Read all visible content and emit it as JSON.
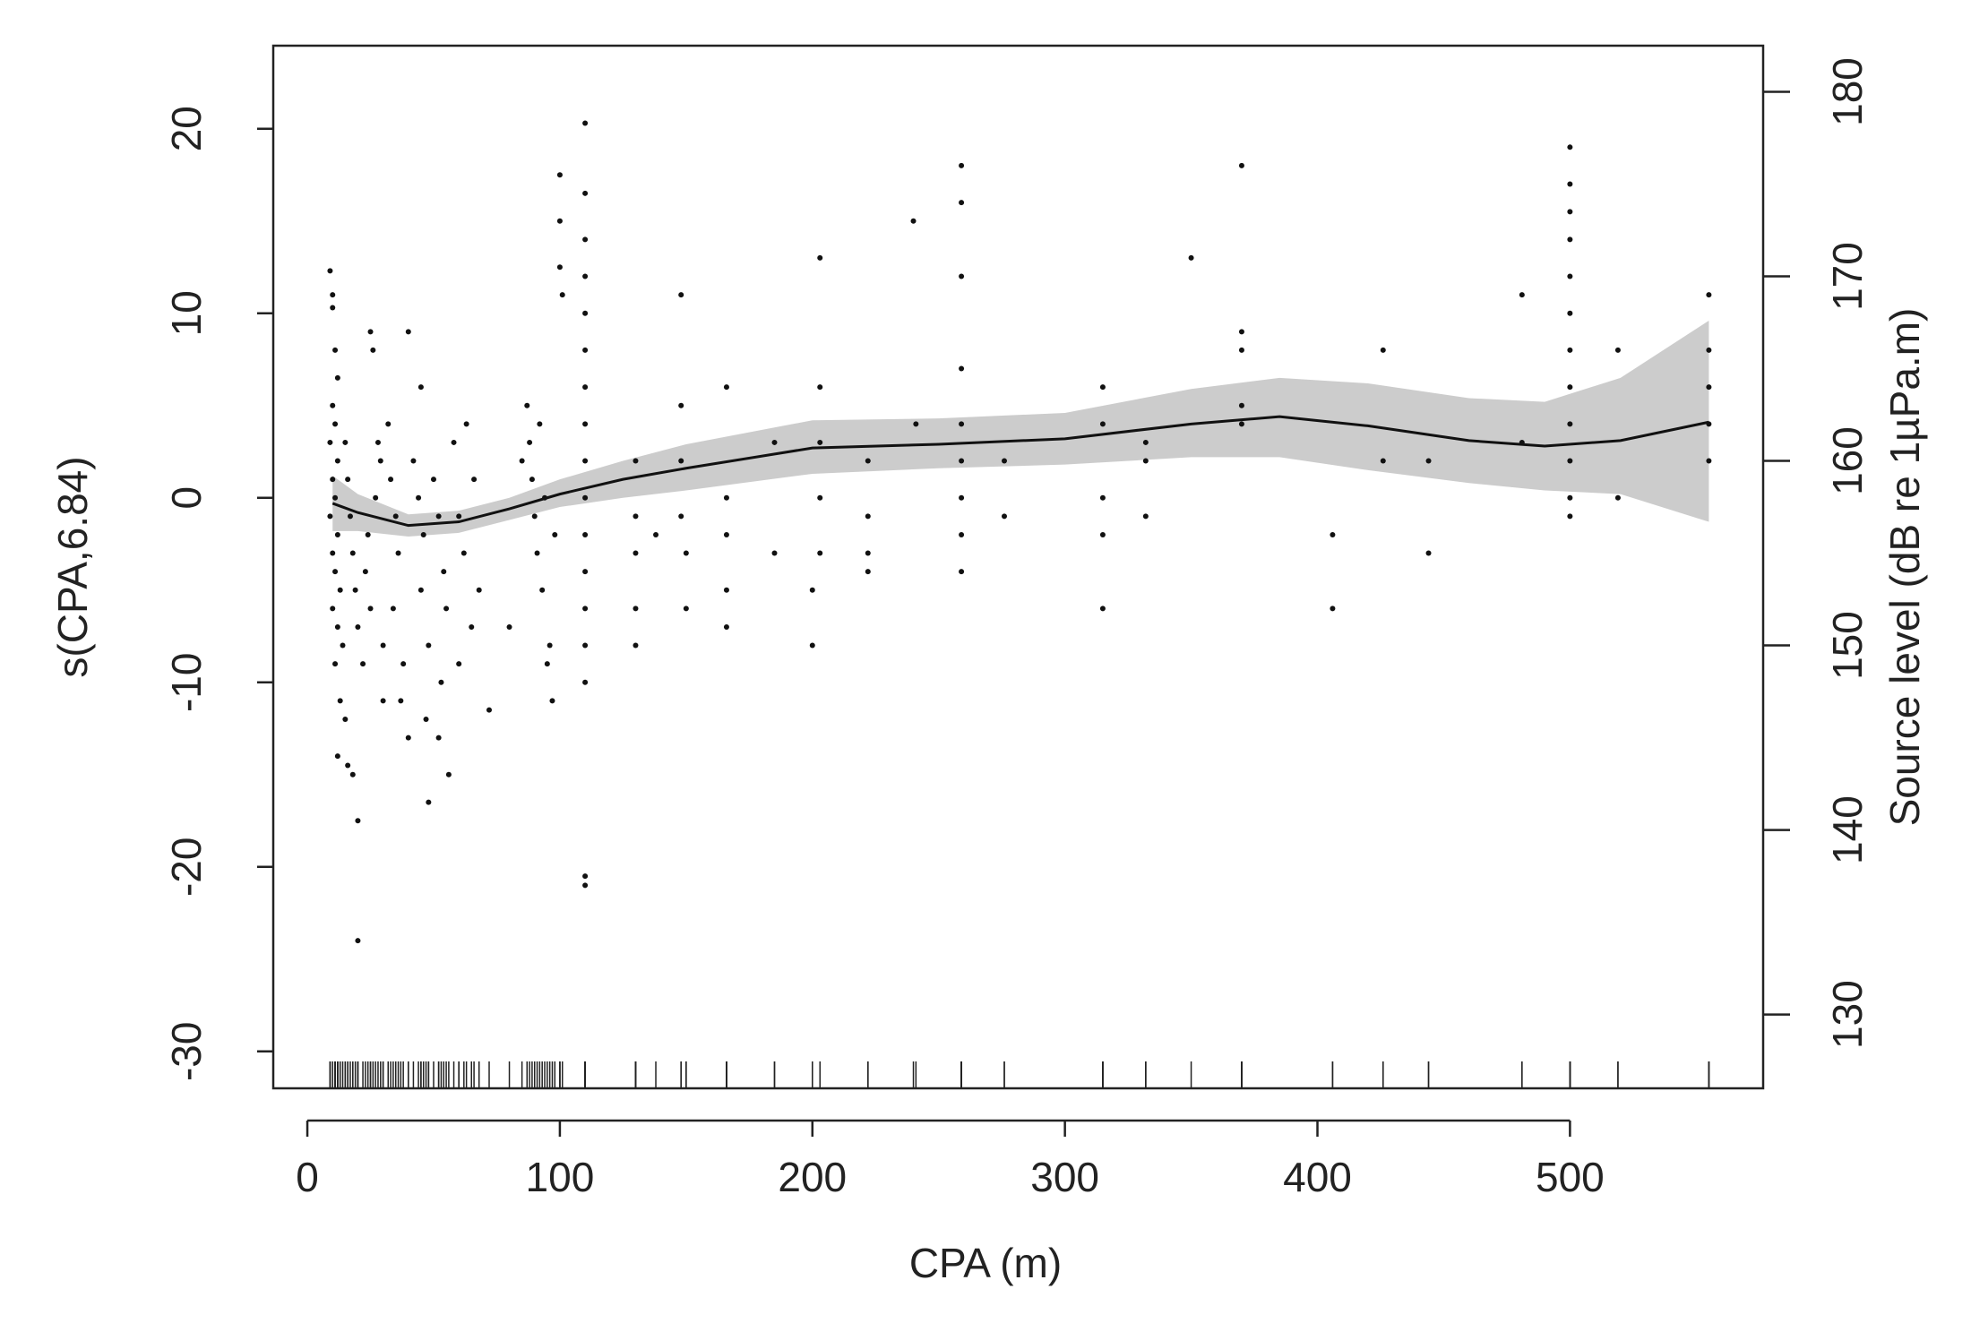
{
  "chart_data": {
    "type": "gam",
    "xlabel": "CPA (m)",
    "ylabel": "s(CPA,6.84)",
    "y2label": "Source level (dB re 1µPa.m)",
    "xlim": [
      -13.5,
      576.5
    ],
    "ylim": [
      -32,
      24.5
    ],
    "y2lim": [
      126,
      182.5
    ],
    "xticks": [
      0,
      100,
      200,
      300,
      400,
      500
    ],
    "yticks": [
      -30,
      -20,
      -10,
      0,
      10,
      20
    ],
    "y2ticks": [
      130,
      140,
      150,
      160,
      170,
      180
    ],
    "point_color": "#111111",
    "line_color": "#111111",
    "band_color": "#cccccc",
    "rug": true,
    "points": {
      "x": [
        9,
        10,
        10,
        11,
        12,
        10,
        11,
        9,
        12,
        10,
        11,
        9,
        12,
        10,
        11,
        13,
        10,
        12,
        14,
        11,
        13,
        15,
        12,
        16,
        18,
        20,
        20,
        15,
        16,
        17,
        18,
        19,
        20,
        22,
        25,
        26,
        28,
        27,
        24,
        23,
        25,
        30,
        30,
        29,
        32,
        33,
        35,
        36,
        34,
        38,
        37,
        40,
        40,
        42,
        44,
        45,
        46,
        45,
        48,
        47,
        48,
        50,
        52,
        54,
        55,
        53,
        52,
        56,
        58,
        60,
        62,
        63,
        60,
        66,
        68,
        65,
        72,
        80,
        85,
        87,
        88,
        90,
        91,
        93,
        89,
        92,
        95,
        97,
        96,
        94,
        98,
        100,
        100,
        101,
        100,
        110,
        110,
        110,
        110,
        110,
        110,
        110,
        110,
        110,
        110,
        110,
        110,
        110,
        110,
        110,
        110,
        110,
        130,
        130,
        130,
        130,
        130,
        138,
        148,
        148,
        148,
        148,
        150,
        150,
        166,
        166,
        166,
        166,
        166,
        185,
        185,
        200,
        200,
        203,
        203,
        203,
        203,
        203,
        222,
        222,
        222,
        222,
        240,
        241,
        259,
        259,
        259,
        259,
        259,
        259,
        259,
        259,
        259,
        276,
        276,
        315,
        315,
        315,
        315,
        315,
        332,
        332,
        332,
        350,
        370,
        370,
        370,
        370,
        370,
        406,
        406,
        426,
        426,
        444,
        444,
        481,
        481,
        500,
        500,
        500,
        500,
        500,
        500,
        500,
        500,
        500,
        500,
        500,
        500,
        519,
        519,
        555,
        555,
        555,
        555,
        555
      ],
      "y": [
        12.3,
        11,
        10.3,
        8,
        6.5,
        5,
        4,
        3,
        2,
        1,
        0,
        -1,
        -2,
        -3,
        -4,
        -5,
        -6,
        -7,
        -8,
        -9,
        -11,
        -12,
        -14,
        -14.5,
        -15,
        -17.5,
        -24,
        3,
        1,
        -1,
        -3,
        -5,
        -7,
        -9,
        9,
        8,
        3,
        0,
        -2,
        -4,
        -6,
        -8,
        -11,
        2,
        4,
        1,
        -1,
        -3,
        -6,
        -9,
        -11,
        9,
        -13,
        2,
        0,
        6,
        -2,
        -5,
        -8,
        -12,
        -16.5,
        1,
        -1,
        -4,
        -6,
        -10,
        -13,
        -15,
        3,
        -1,
        -3,
        4,
        -9,
        1,
        -5,
        -7,
        -11.5,
        -7,
        2,
        5,
        3,
        -1,
        -3,
        -5,
        1,
        4,
        -9,
        -11,
        -8,
        0,
        -2,
        15,
        17.5,
        11,
        12.5,
        20.3,
        16.5,
        14,
        12,
        10,
        8,
        6,
        4,
        2,
        0,
        -2,
        -4,
        -6,
        -8,
        -10,
        -20.5,
        -21,
        2,
        -1,
        -3,
        -6,
        -8,
        -2,
        11,
        5,
        2,
        -1,
        -3,
        -6,
        6,
        0,
        -2,
        -5,
        -7,
        3,
        -3,
        -5,
        -8,
        13,
        6,
        3,
        0,
        -3,
        2,
        -1,
        -3,
        -4,
        15,
        4,
        18,
        16,
        12,
        7,
        4,
        2,
        0,
        -2,
        -4,
        2,
        -1,
        6,
        4,
        0,
        -2,
        -6,
        3,
        2,
        -1,
        13,
        18,
        9,
        8,
        5,
        4,
        -2,
        -6,
        8,
        2,
        2,
        -3,
        11,
        3,
        19,
        17,
        15.5,
        14,
        12,
        10,
        8,
        6,
        4,
        2,
        0,
        -1,
        8,
        0,
        11,
        8,
        6,
        4,
        2
      ]
    },
    "smooth": {
      "x": [
        10,
        20,
        40,
        60,
        80,
        100,
        125,
        150,
        200,
        250,
        300,
        350,
        385,
        420,
        460,
        490,
        520,
        555
      ],
      "fit": [
        -0.3,
        -0.8,
        -1.5,
        -1.3,
        -0.6,
        0.2,
        1.0,
        1.6,
        2.7,
        2.9,
        3.2,
        4.0,
        4.4,
        3.9,
        3.1,
        2.8,
        3.1,
        4.1
      ],
      "lower": [
        -1.8,
        -1.8,
        -2.1,
        -1.9,
        -1.2,
        -0.5,
        0.0,
        0.4,
        1.3,
        1.6,
        1.8,
        2.2,
        2.2,
        1.5,
        0.8,
        0.4,
        0.2,
        -1.3
      ],
      "upper": [
        1.2,
        0.2,
        -0.9,
        -0.7,
        0.0,
        1.0,
        2.0,
        2.9,
        4.2,
        4.3,
        4.6,
        5.9,
        6.5,
        6.2,
        5.4,
        5.2,
        6.5,
        9.6
      ]
    }
  }
}
